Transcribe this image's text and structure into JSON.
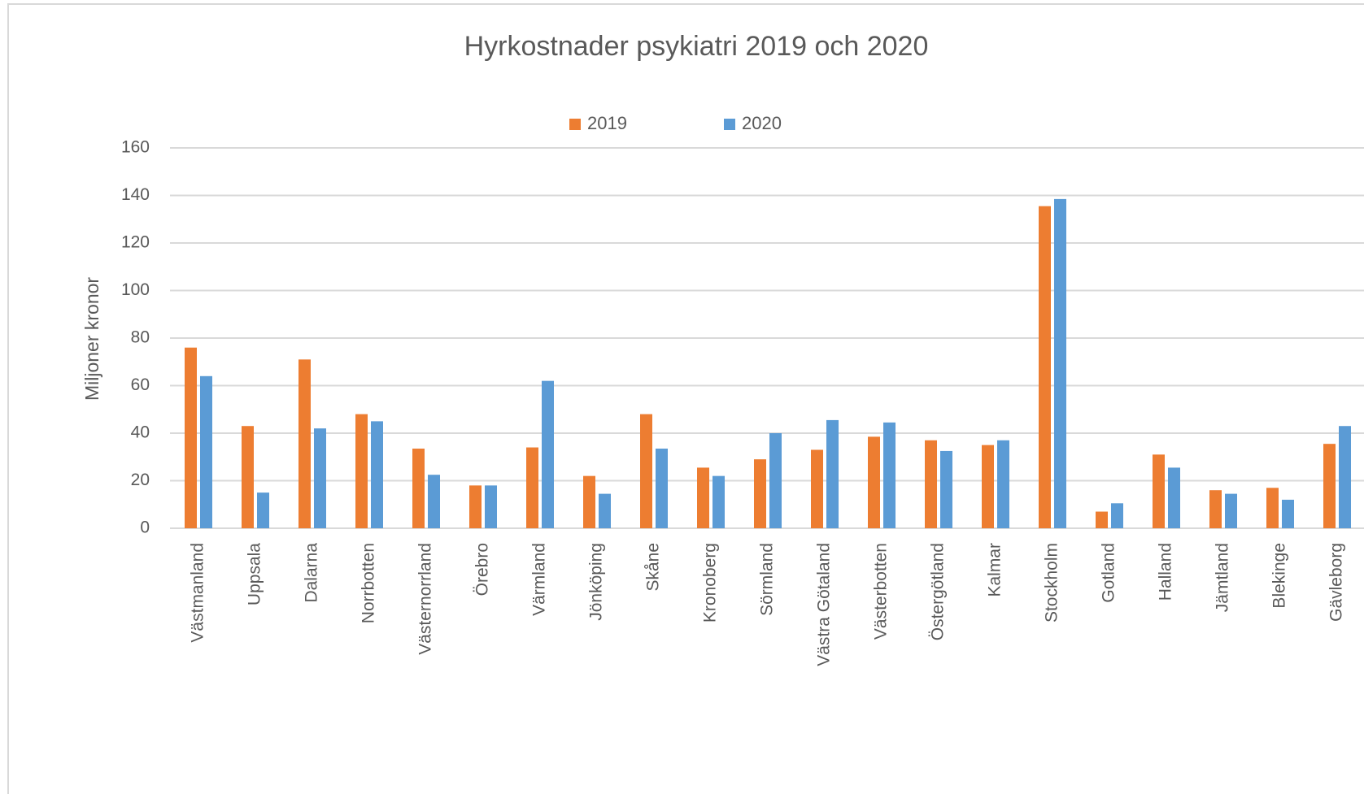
{
  "chart_data": {
    "type": "bar",
    "title": "Hyrkostnader psykiatri 2019 och 2020",
    "y_label": "Miljoner kronor",
    "categories": [
      "Västmanland",
      "Uppsala",
      "Dalarna",
      "Norrbotten",
      "Västernorrland",
      "Örebro",
      "Värmland",
      "Jönköping",
      "Skåne",
      "Kronoberg",
      "Sörmland",
      "Västra Götaland",
      "Västerbotten",
      "Östergötland",
      "Kalmar",
      "Stockholm",
      "Gotland",
      "Halland",
      "Jämtland",
      "Blekinge",
      "Gävleborg"
    ],
    "series": [
      {
        "name": "2019",
        "color": "#ed7d31",
        "values": [
          76,
          43,
          71,
          48,
          33.5,
          18,
          34,
          22,
          48,
          25.5,
          29,
          33,
          38.5,
          37,
          35,
          135.5,
          7,
          31,
          16,
          17,
          35.5
        ]
      },
      {
        "name": "2020",
        "color": "#5b9bd5",
        "values": [
          64,
          15,
          42,
          45,
          22.5,
          18,
          62,
          14.5,
          33.5,
          22,
          40,
          45.5,
          44.5,
          32.5,
          37,
          138.5,
          10.5,
          25.5,
          14.5,
          12,
          43
        ]
      }
    ],
    "ylim": [
      0,
      160
    ],
    "yticks": [
      0,
      20,
      40,
      60,
      80,
      100,
      120,
      140,
      160
    ],
    "grid": true,
    "legend": "top"
  }
}
